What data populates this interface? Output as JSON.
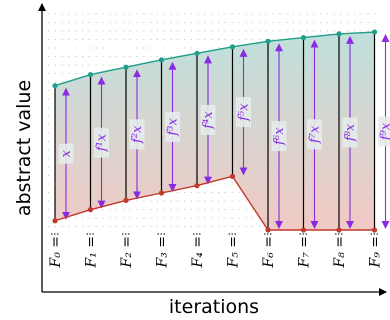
{
  "axes": {
    "ylabel": "abstract value",
    "xlabel": "iterations"
  },
  "colors": {
    "upper_curve": "#1f9e89",
    "lower_curve": "#c0392b",
    "arrows": "#8a2be2",
    "fill_top": "#bfe0dc",
    "fill_bottom": "#f1c9c4"
  },
  "chart_data": {
    "type": "line",
    "x": [
      0,
      1,
      2,
      3,
      4,
      5,
      6,
      7,
      8,
      9
    ],
    "iteration_labels": [
      "F₀ =",
      "F₁ =",
      "F₂ =",
      "F₃ =",
      "F₄ =",
      "F₅ =",
      "F₆ =",
      "F₇ =",
      "F₈ =",
      "F₉ ="
    ],
    "applications": [
      "x",
      "f¹x",
      "f²x",
      "f³x",
      "f⁴x",
      "f⁵x",
      "f⁶x",
      "f⁷x",
      "f⁸x",
      "f⁹x"
    ],
    "series": [
      {
        "values": [
          0.78,
          0.84,
          0.88,
          0.92,
          0.955,
          0.99,
          1.02,
          1.04,
          1.06,
          1.07
        ]
      },
      {
        "values": [
          0.05,
          0.11,
          0.16,
          0.2,
          0.24,
          0.29,
          0.0,
          0.0,
          0.0,
          0.0
        ]
      }
    ],
    "ylim": [
      0,
      1.1
    ]
  }
}
